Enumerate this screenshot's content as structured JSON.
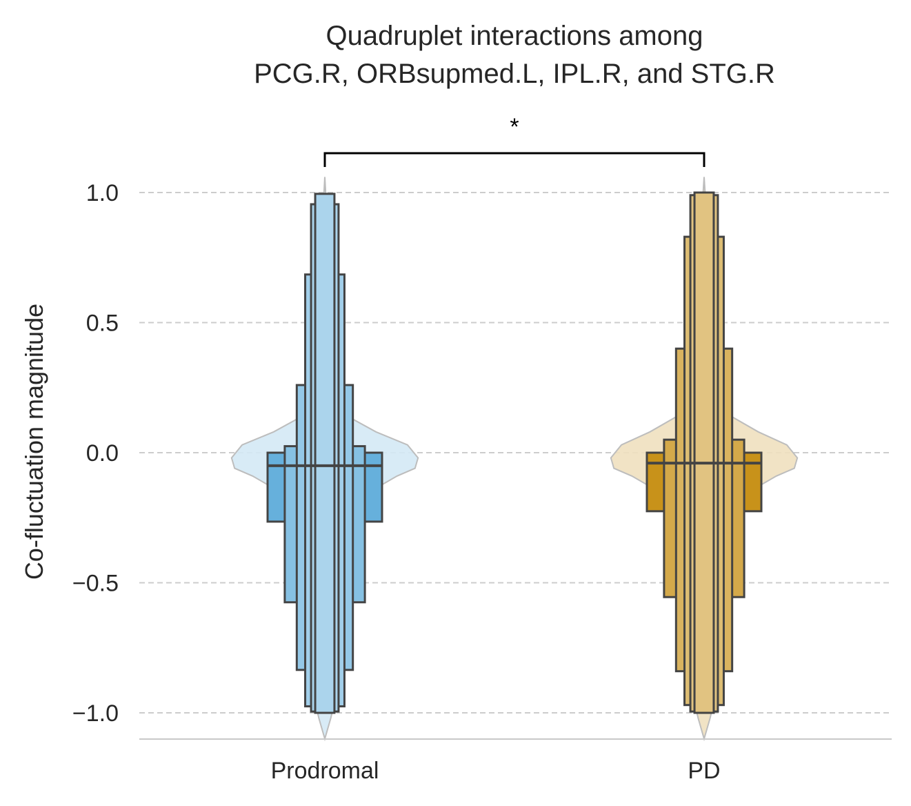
{
  "chart_data": {
    "type": "boxen",
    "title_lines": [
      "Quadruplet interactions among",
      "PCG.R, ORBsupmed.L, IPL.R, and STG.R"
    ],
    "xlabel": "",
    "ylabel": "Co-fluctuation magnitude",
    "ylim": [
      -1.1,
      1.0
    ],
    "yticks": [
      1.0,
      0.5,
      0.0,
      -0.5,
      -1.0
    ],
    "ytick_labels": [
      "1.0",
      "0.5",
      "0.0",
      "−0.5",
      "−1.0"
    ],
    "grid": "horizontal dashed",
    "categories": [
      "Prodromal",
      "PD"
    ],
    "colors": {
      "Prodromal": "#66b0dc",
      "PD": "#c8921a"
    },
    "series": [
      {
        "category": "Prodromal",
        "median": -0.05,
        "boxes": [
          {
            "low": -0.265,
            "high": 0.0
          },
          {
            "low": -0.575,
            "high": 0.025
          },
          {
            "low": -0.835,
            "high": 0.26
          },
          {
            "low": -0.975,
            "high": 0.685
          },
          {
            "low": -0.995,
            "high": 0.955
          },
          {
            "low": -1.0,
            "high": 0.995
          }
        ],
        "violin": [
          [
            1.06,
            0.0
          ],
          [
            0.95,
            0.01
          ],
          [
            0.6,
            0.015
          ],
          [
            0.3,
            0.03
          ],
          [
            0.15,
            0.12
          ],
          [
            0.08,
            0.34
          ],
          [
            0.03,
            0.55
          ],
          [
            -0.02,
            0.62
          ],
          [
            -0.06,
            0.6
          ],
          [
            -0.09,
            0.48
          ],
          [
            -0.15,
            0.3
          ],
          [
            -0.25,
            0.17
          ],
          [
            -0.35,
            0.12
          ],
          [
            -0.55,
            0.12
          ],
          [
            -0.75,
            0.1
          ],
          [
            -0.88,
            0.05
          ],
          [
            -0.93,
            0.04
          ],
          [
            -0.97,
            0.06
          ],
          [
            -1.02,
            0.04
          ],
          [
            -1.1,
            0.0
          ]
        ]
      },
      {
        "category": "PD",
        "median": -0.04,
        "boxes": [
          {
            "low": -0.225,
            "high": 0.0
          },
          {
            "low": -0.555,
            "high": 0.05
          },
          {
            "low": -0.84,
            "high": 0.4
          },
          {
            "low": -0.97,
            "high": 0.83
          },
          {
            "low": -0.995,
            "high": 0.99
          },
          {
            "low": -1.0,
            "high": 1.0
          }
        ],
        "violin": [
          [
            1.06,
            0.0
          ],
          [
            0.95,
            0.012
          ],
          [
            0.6,
            0.02
          ],
          [
            0.3,
            0.04
          ],
          [
            0.15,
            0.15
          ],
          [
            0.08,
            0.36
          ],
          [
            0.03,
            0.55
          ],
          [
            -0.02,
            0.62
          ],
          [
            -0.06,
            0.6
          ],
          [
            -0.09,
            0.48
          ],
          [
            -0.15,
            0.3
          ],
          [
            -0.25,
            0.17
          ],
          [
            -0.35,
            0.12
          ],
          [
            -0.55,
            0.12
          ],
          [
            -0.75,
            0.1
          ],
          [
            -0.88,
            0.05
          ],
          [
            -0.93,
            0.04
          ],
          [
            -0.97,
            0.06
          ],
          [
            -1.02,
            0.04
          ],
          [
            -1.1,
            0.0
          ]
        ]
      }
    ],
    "annotation": {
      "from": "Prodromal",
      "to": "PD",
      "text": "*"
    }
  }
}
